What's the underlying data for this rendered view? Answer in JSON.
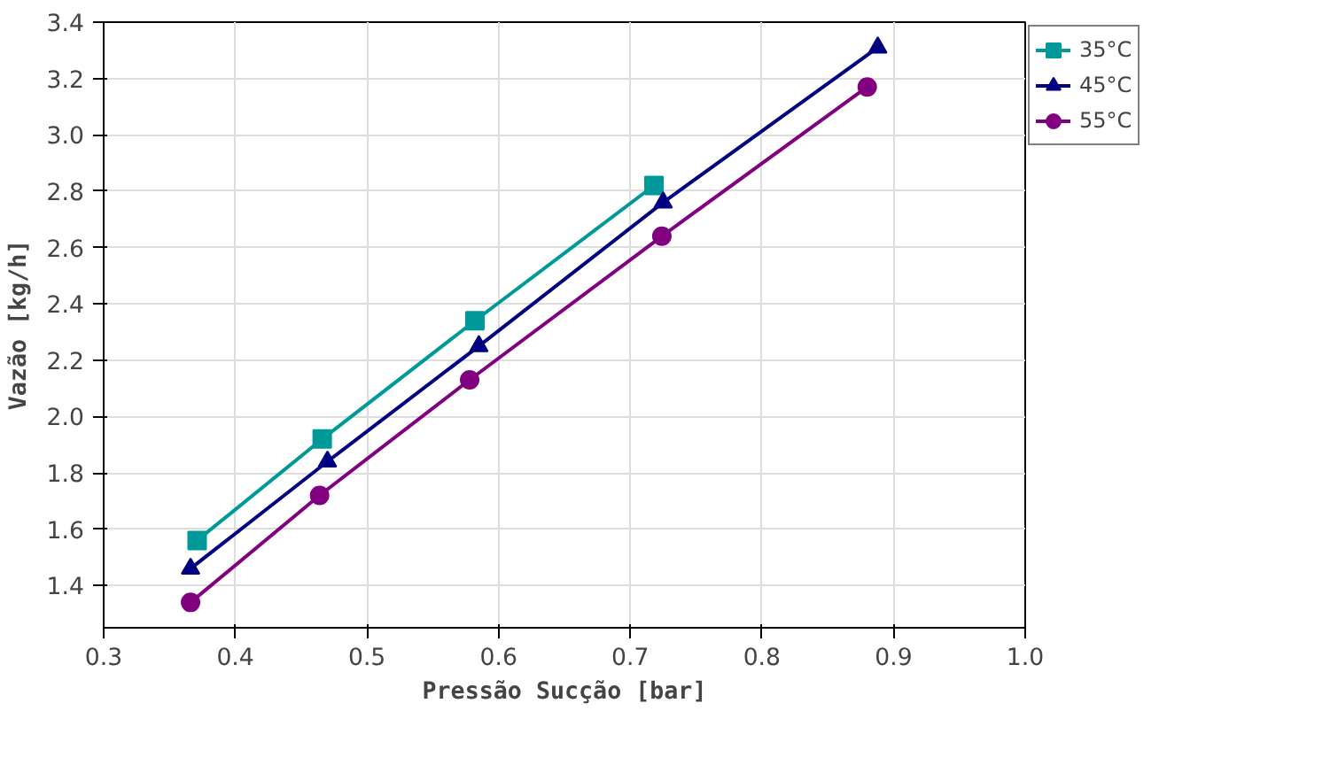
{
  "chart_data": {
    "type": "line",
    "xlabel": "Pressão Sucção [bar]",
    "ylabel": "Vazão [kg/h]",
    "xlim": [
      0.3,
      1.0
    ],
    "xticks": [
      0.3,
      0.4,
      0.5,
      0.6,
      0.7,
      0.8,
      0.9,
      {
        "value": 1,
        "label": "1.0"
      }
    ],
    "ylim": [
      1.25,
      3.4
    ],
    "yticks": [
      1.4,
      1.6,
      1.8,
      {
        "value": 2,
        "label": "2.0"
      },
      2.2,
      2.4,
      2.6,
      2.8,
      {
        "value": 3,
        "label": "3.0"
      },
      3.2,
      3.4
    ],
    "grid": true,
    "legend": "top right",
    "line_style": "solid",
    "series": [
      {
        "name": "35°C",
        "color": "#009999",
        "marker": "square",
        "x": [
          0.371,
          0.466,
          0.582,
          0.718
        ],
        "values": [
          1.56,
          1.92,
          2.34,
          2.82
        ]
      },
      {
        "name": "45°C",
        "color": "#000080",
        "marker": "triangle",
        "x": [
          0.366,
          0.47,
          0.585,
          0.725,
          0.888
        ],
        "values": [
          1.46,
          1.84,
          2.25,
          2.76,
          3.31
        ]
      },
      {
        "name": "55°C",
        "color": "#800080",
        "marker": "circle",
        "x": [
          0.366,
          0.464,
          0.578,
          0.724,
          0.88
        ],
        "values": [
          1.34,
          1.72,
          2.13,
          2.64,
          3.17
        ]
      }
    ]
  }
}
